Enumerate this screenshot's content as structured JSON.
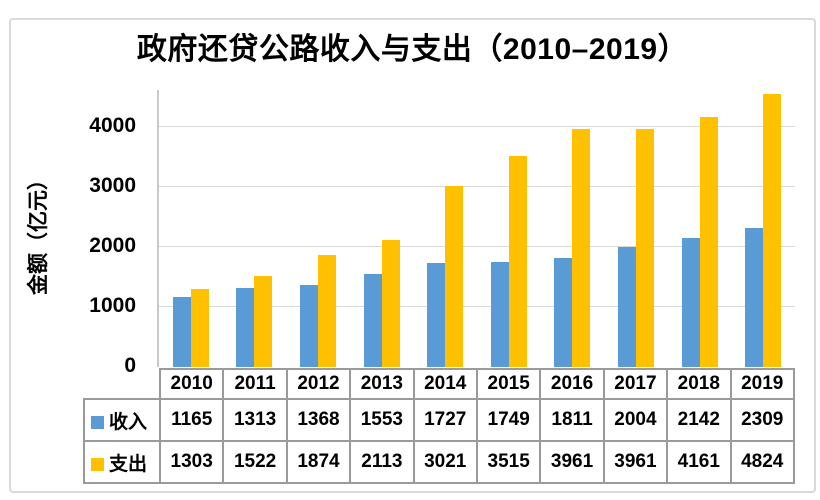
{
  "title": "政府还贷公路收入与支出（2010–2019）",
  "y_axis": {
    "label": "金额（亿元）",
    "tick_labels": [
      "0",
      "1000",
      "2000",
      "3000",
      "4000"
    ]
  },
  "chart_data": {
    "type": "bar",
    "title": "政府还贷公路收入与支出（2010–2019）",
    "xlabel": "",
    "ylabel": "金额（亿元）",
    "categories": [
      "2010",
      "2011",
      "2012",
      "2013",
      "2014",
      "2015",
      "2016",
      "2017",
      "2018",
      "2019"
    ],
    "series": [
      {
        "name": "收入",
        "color": "#5B9BD5",
        "values": [
          1165,
          1313,
          1368,
          1553,
          1727,
          1749,
          1811,
          2004,
          2142,
          2309
        ]
      },
      {
        "name": "支出",
        "color": "#FFC000",
        "values": [
          1303,
          1522,
          1874,
          2113,
          3021,
          3515,
          3961,
          3961,
          4161,
          4824
        ]
      }
    ],
    "yticks": [
      0,
      1000,
      2000,
      3000,
      4000
    ],
    "ylim": [
      0,
      4550
    ],
    "grid": true,
    "legend_position": "data-table-left"
  },
  "colors": {
    "income": "#5B9BD5",
    "expense": "#FFC000",
    "gridline": "#D9D9D9",
    "axis": "#C9C9C9",
    "table_border": "#9A9A9A",
    "text": "#000000"
  }
}
